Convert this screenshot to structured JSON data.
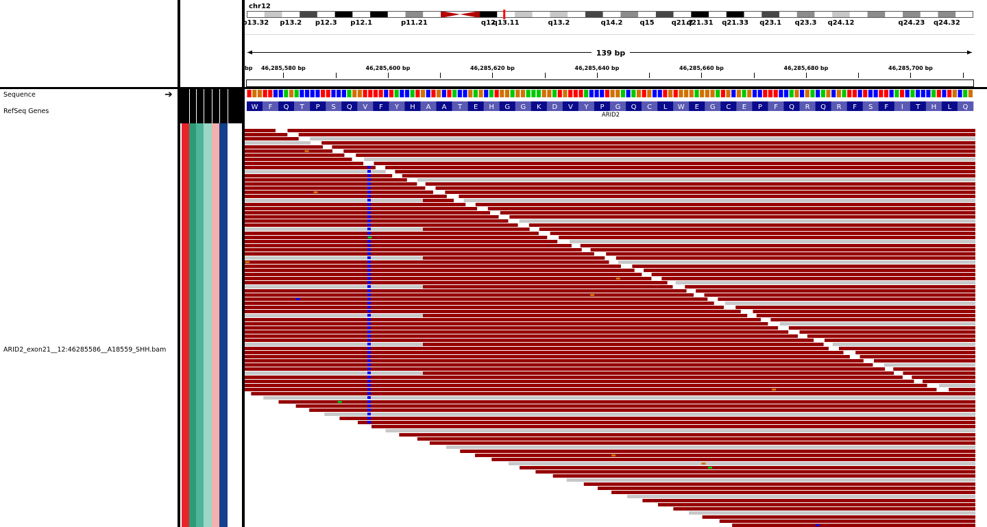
{
  "header": {
    "chromosome": "chr12",
    "span_label": "139 bp",
    "ruler_ticks": [
      {
        "label": "46,285,580 bp",
        "pos": 46285580
      },
      {
        "label": "46,285,600 bp",
        "pos": 46285600
      },
      {
        "label": "46,285,620 bp",
        "pos": 46285620
      },
      {
        "label": "46,285,640 bp",
        "pos": 46285640
      },
      {
        "label": "46,285,660 bp",
        "pos": 46285660
      },
      {
        "label": "46,285,680 bp",
        "pos": 46285680
      },
      {
        "label": "46,285,700 bp",
        "pos": 46285700
      }
    ],
    "left_edge_label": "bp",
    "view_start": 46285573,
    "view_end": 46285712
  },
  "ideogram": {
    "bands": [
      {
        "name": "p13.32",
        "stain": "gneg"
      },
      {
        "name": "p13.31",
        "stain": "gpos25"
      },
      {
        "name": "p13.2",
        "stain": "gneg"
      },
      {
        "name": "p13.1",
        "stain": "gpos75"
      },
      {
        "name": "p12.3",
        "stain": "gneg"
      },
      {
        "name": "p12.2",
        "stain": "gpos100"
      },
      {
        "name": "p12.1",
        "stain": "gneg"
      },
      {
        "name": "p11.23",
        "stain": "gpos100"
      },
      {
        "name": "p11.22",
        "stain": "gneg"
      },
      {
        "name": "p11.21",
        "stain": "gpos50"
      },
      {
        "name": "p11.1",
        "stain": "gneg"
      },
      {
        "name": "cen",
        "stain": "acen"
      },
      {
        "name": "q12",
        "stain": "gpos100"
      },
      {
        "name": "q13.11",
        "stain": "gneg"
      },
      {
        "name": "q13.12",
        "stain": "gpos25"
      },
      {
        "name": "q13.13",
        "stain": "gneg"
      },
      {
        "name": "q13.2",
        "stain": "gpos25"
      },
      {
        "name": "q13.3",
        "stain": "gneg"
      },
      {
        "name": "q14.1",
        "stain": "gpos75"
      },
      {
        "name": "q14.2",
        "stain": "gneg"
      },
      {
        "name": "q14.3",
        "stain": "gpos50"
      },
      {
        "name": "q15",
        "stain": "gneg"
      },
      {
        "name": "q21.1",
        "stain": "gpos75"
      },
      {
        "name": "q21.2",
        "stain": "gneg"
      },
      {
        "name": "q21.31",
        "stain": "gpos100"
      },
      {
        "name": "q21.32",
        "stain": "gneg"
      },
      {
        "name": "q21.33",
        "stain": "gpos100"
      },
      {
        "name": "q22",
        "stain": "gneg"
      },
      {
        "name": "q23.1",
        "stain": "gpos75"
      },
      {
        "name": "q23.2",
        "stain": "gneg"
      },
      {
        "name": "q23.3",
        "stain": "gpos50"
      },
      {
        "name": "q24.11",
        "stain": "gneg"
      },
      {
        "name": "q24.12",
        "stain": "gpos25"
      },
      {
        "name": "q24.13",
        "stain": "gneg"
      },
      {
        "name": "q24.21",
        "stain": "gpos50"
      },
      {
        "name": "q24.22",
        "stain": "gneg"
      },
      {
        "name": "q24.23",
        "stain": "gpos50"
      },
      {
        "name": "q24.31",
        "stain": "gneg"
      },
      {
        "name": "q24.32",
        "stain": "gpos50"
      },
      {
        "name": "q24.33",
        "stain": "gneg"
      }
    ],
    "visible_labels": [
      "p13.32",
      "p13.2",
      "p12.3",
      "p12.1",
      "p11.21",
      "q12",
      "q13.11",
      "q13.2",
      "q14.2",
      "q15",
      "q21.2",
      "q21.31",
      "q21.33",
      "q23.1",
      "q23.3",
      "q24.12",
      "q24.23",
      "q24.32"
    ],
    "current_band": "q13.11",
    "highlight_color": "#ff0000"
  },
  "tracks": {
    "sequence": {
      "name": "Sequence"
    },
    "refseq": {
      "name": "RefSeq Genes",
      "gene_name": "ARID2"
    },
    "bam": {
      "name": "ARID2_exon21__12:46285586__A18559_SHH.bam"
    }
  },
  "translation": [
    "W",
    "F",
    "Q",
    "T",
    "P",
    "S",
    "Q",
    "V",
    "F",
    "Y",
    "H",
    "A",
    "A",
    "T",
    "E",
    "H",
    "G",
    "G",
    "K",
    "D",
    "V",
    "Y",
    "P",
    "G",
    "Q",
    "C",
    "L",
    "W",
    "E",
    "G",
    "C",
    "E",
    "P",
    "F",
    "Q",
    "R",
    "Q",
    "R",
    "F",
    "S",
    "F",
    "I",
    "T",
    "H",
    "L",
    "Q"
  ],
  "colors": {
    "A": "#00c800",
    "C": "#0000ff",
    "G": "#d17105",
    "T": "#ff0000",
    "read_forward": "#960000",
    "read_gray": "#c8c8c8",
    "variant_column": "#0000ff",
    "aa_dark": "#0a0a8c",
    "aa_light": "#5a5ab4",
    "attribute_columns": [
      "#e8242a",
      "#2f9b76",
      "#4fb59a",
      "#9cd6c8",
      "#f4b0ac",
      "#14418c",
      "#ffffff"
    ]
  }
}
